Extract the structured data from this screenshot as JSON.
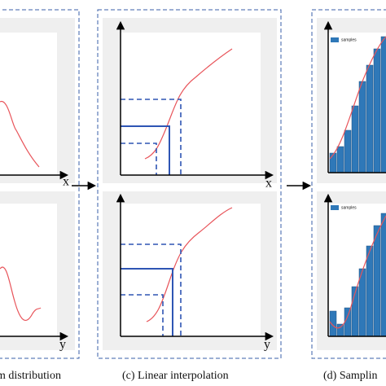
{
  "panels": [
    {
      "top_x_label": "x",
      "bottom_x_label": "y",
      "caption": "m distribution"
    },
    {
      "top_x_label": "x",
      "bottom_x_label": "y",
      "caption": "(c) Linear interpolation"
    },
    {
      "top_legend": "samples",
      "bottom_legend": "samples",
      "caption": "(d) Samplin"
    }
  ]
}
